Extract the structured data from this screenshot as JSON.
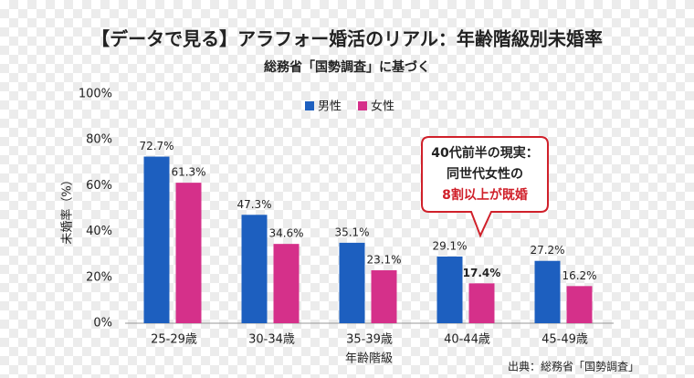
{
  "chart_data": {
    "type": "bar",
    "title": "【データで見る】アラフォー婚活のリアル：年齢階級別未婚率",
    "subtitle": "総務省「国勢調査」に基づく",
    "y_label": "未婚率（%）",
    "x_label": "年齢階級",
    "source": "出典：総務省「国勢調査」",
    "categories": [
      "25-29歳",
      "30-34歳",
      "35-39歳",
      "40-44歳",
      "45-49歳"
    ],
    "series": [
      {
        "name": "男性",
        "color": "#1d5fbf",
        "values": [
          72.7,
          47.3,
          35.1,
          29.1,
          27.2
        ],
        "value_labels": [
          "72.7%",
          "47.3%",
          "35.1%",
          "29.1%",
          "27.2%"
        ]
      },
      {
        "name": "女性",
        "color": "#d5308a",
        "values": [
          61.3,
          34.6,
          23.1,
          17.4,
          16.2
        ],
        "value_labels": [
          "61.3%",
          "34.6%",
          "23.1%",
          "17.4%",
          "16.2%"
        ]
      }
    ],
    "ylim": [
      0,
      100
    ],
    "yticks": [
      {
        "value": 0,
        "label": "0%"
      },
      {
        "value": 20,
        "label": "20%"
      },
      {
        "value": 40,
        "label": "40%"
      },
      {
        "value": 60,
        "label": "60%"
      },
      {
        "value": 80,
        "label": "80%"
      },
      {
        "value": 100,
        "label": "100%"
      }
    ],
    "grid": false,
    "annotation": {
      "lines": [
        "40代前半の現実：",
        "同世代女性の",
        "8割以上が既婚"
      ]
    }
  }
}
